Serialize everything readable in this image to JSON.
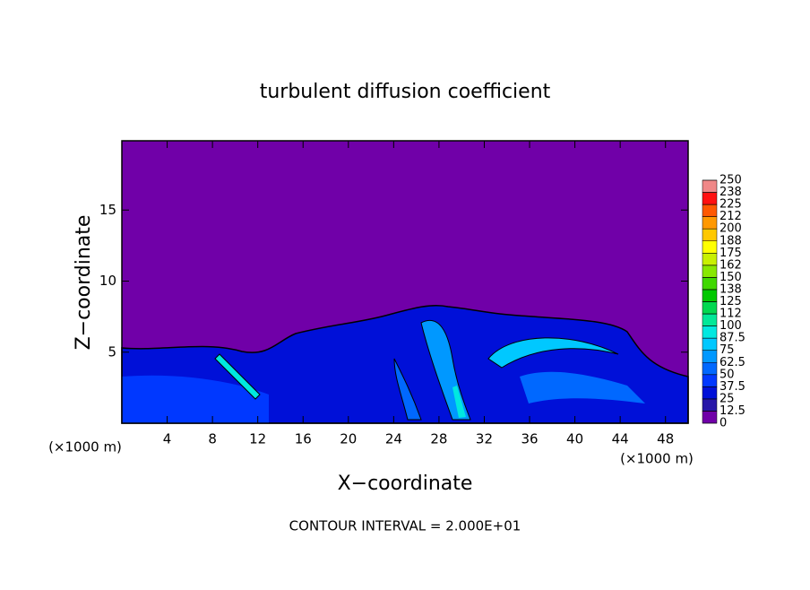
{
  "chart_data": {
    "type": "contour",
    "title": "turbulent diffusion coefficient",
    "xlabel": "X−coordinate",
    "ylabel": "Z−coordinate",
    "x_unit_left": "(×1000 m)",
    "x_unit_right": "(×1000 m)",
    "footnote": "CONTOUR INTERVAL = 2.000E+01",
    "xlim": [
      0,
      50
    ],
    "xticks": [
      4,
      8,
      12,
      16,
      20,
      24,
      28,
      32,
      36,
      40,
      44,
      48
    ],
    "ylim": [
      0,
      20
    ],
    "yticks": [
      5,
      10,
      15
    ],
    "colorbar": {
      "lim": [
        0,
        250
      ],
      "ticks": [
        0,
        12.5,
        25,
        37.5,
        50,
        62.5,
        75,
        87.5,
        100,
        {
          "value": 112.5,
          "label": "112"
        },
        125,
        {
          "value": 137.5,
          "label": "138"
        },
        150,
        {
          "value": 162.5,
          "label": "162"
        },
        175,
        {
          "value": 187.5,
          "label": "188"
        },
        200,
        {
          "value": 212.5,
          "label": "212"
        },
        225,
        {
          "value": 237.5,
          "label": "238"
        },
        250
      ],
      "colors": [
        "#7000a8",
        "#2818a8",
        "#0010d8",
        "#0038ff",
        "#0068ff",
        "#0098ff",
        "#00c8ff",
        "#00e8e0",
        "#00e898",
        "#00d850",
        "#00c800",
        "#40d800",
        "#88e800",
        "#c8f000",
        "#ffff00",
        "#ffc800",
        "#ff9800",
        "#ff5800",
        "#ff1010",
        "#f08888"
      ]
    }
  }
}
